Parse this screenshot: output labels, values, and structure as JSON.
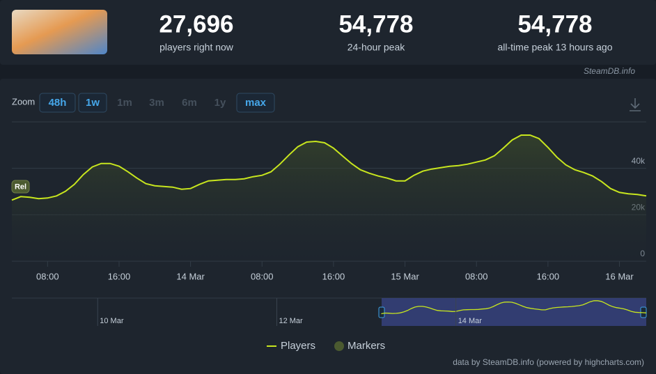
{
  "header": {
    "stats": [
      {
        "value": "27,696",
        "label": "players right now"
      },
      {
        "value": "54,778",
        "label": "24-hour peak"
      },
      {
        "value": "54,778",
        "label": "all-time peak 13 hours ago"
      }
    ],
    "source": "SteamDB.info"
  },
  "zoom": {
    "label": "Zoom",
    "options": [
      {
        "label": "48h",
        "enabled": true
      },
      {
        "label": "1w",
        "enabled": true
      },
      {
        "label": "1m",
        "enabled": false
      },
      {
        "label": "3m",
        "enabled": false
      },
      {
        "label": "6m",
        "enabled": false
      },
      {
        "label": "1y",
        "enabled": false
      },
      {
        "label": "max",
        "enabled": true
      }
    ]
  },
  "chart_data": {
    "type": "line",
    "x": [
      4,
      5,
      6,
      7,
      8,
      9,
      10,
      11,
      12,
      13,
      14,
      15,
      16,
      17,
      18,
      19,
      20,
      21,
      22,
      23,
      24,
      25,
      26,
      27,
      28,
      29,
      30,
      31,
      32,
      33,
      34,
      35,
      36,
      37,
      38,
      39,
      40,
      41,
      42,
      43,
      44,
      45,
      46,
      47,
      48,
      49,
      50,
      51,
      52,
      53,
      54,
      55,
      56,
      57,
      58,
      59,
      60,
      61,
      62,
      63,
      64,
      65,
      66,
      67,
      68,
      69,
      70,
      71,
      72,
      73,
      74,
      75
    ],
    "series": [
      {
        "name": "Players",
        "color": "#c8e61e",
        "values": [
          26300,
          27800,
          27500,
          26900,
          27200,
          28100,
          30100,
          33100,
          37300,
          40600,
          42100,
          42100,
          40900,
          38500,
          35800,
          33400,
          32500,
          32200,
          31900,
          31000,
          31300,
          33100,
          34600,
          34900,
          35200,
          35200,
          35500,
          36400,
          37000,
          38500,
          41800,
          45700,
          49300,
          51300,
          51600,
          51000,
          48700,
          45400,
          42100,
          39400,
          37900,
          36700,
          35800,
          34600,
          34600,
          37000,
          38800,
          39700,
          40300,
          40900,
          41200,
          41800,
          42700,
          43600,
          45400,
          48700,
          52200,
          54300,
          54300,
          52800,
          49000,
          44800,
          41500,
          39400,
          38200,
          36700,
          34300,
          31300,
          29600,
          29000,
          28700,
          28100
        ]
      }
    ],
    "markers": {
      "name": "Markers",
      "color": "#4b5a30",
      "items": [
        {
          "label": "Rel"
        }
      ]
    },
    "xlim": [
      4,
      75
    ],
    "xticks": [
      {
        "value": 8,
        "label": "08:00"
      },
      {
        "value": 16,
        "label": "16:00"
      },
      {
        "value": 24,
        "label": "14 Mar"
      },
      {
        "value": 32,
        "label": "08:00"
      },
      {
        "value": 40,
        "label": "16:00"
      },
      {
        "value": 48,
        "label": "15 Mar"
      },
      {
        "value": 56,
        "label": "08:00"
      },
      {
        "value": 64,
        "label": "16:00"
      },
      {
        "value": 72,
        "label": "16 Mar"
      }
    ],
    "ylim": [
      0,
      60000
    ],
    "yticks": [
      0,
      {
        "value": 20000,
        "label": "20k"
      },
      {
        "value": 40000,
        "label": "40k"
      }
    ],
    "grid": true,
    "navigator": {
      "xlim": [
        -95,
        75
      ],
      "xticks": [
        {
          "value": -72,
          "label": "10 Mar"
        },
        {
          "value": -24,
          "label": "12 Mar"
        },
        {
          "value": 24,
          "label": "14 Mar"
        }
      ]
    }
  },
  "credits": "data by SteamDB.info (powered by highcharts.com)"
}
